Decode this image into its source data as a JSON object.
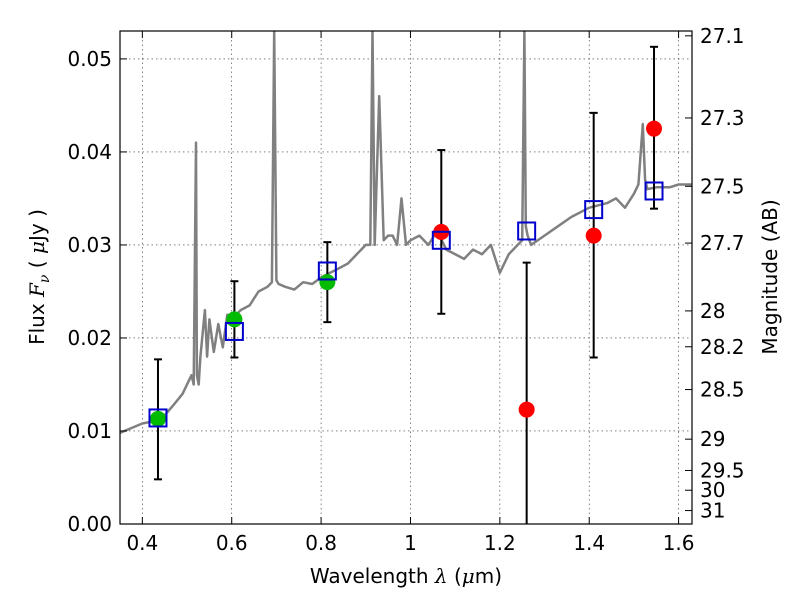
{
  "chart_data": {
    "type": "scatter",
    "xlabel_text": "Wavelength",
    "xlabel_symbol": "λ",
    "xlabel_unit_open": "(",
    "xlabel_unit_mu": "μ",
    "xlabel_unit_rest": "m)",
    "ylabel_text": "Flux",
    "ylabel_symbol": "F",
    "ylabel_sub": "ν",
    "ylabel_unit_open": "(",
    "ylabel_unit_mu": "μ",
    "ylabel_unit_rest": "Jy )",
    "y2label": "Magnitude (AB)",
    "xlim": [
      0.35,
      1.63
    ],
    "ylim": [
      0.0,
      0.053
    ],
    "grid": true,
    "x_ticks": [
      0.4,
      0.6,
      0.8,
      1.0,
      1.2,
      1.4,
      1.6
    ],
    "x_tick_labels": [
      "0.4",
      "0.6",
      "0.8",
      "1",
      "1.2",
      "1.4",
      "1.6"
    ],
    "y_ticks": [
      0.0,
      0.01,
      0.02,
      0.03,
      0.04,
      0.05
    ],
    "y_tick_labels": [
      "0.00",
      "0.01",
      "0.02",
      "0.03",
      "0.04",
      "0.05"
    ],
    "mag_ticks": [
      27.1,
      27.3,
      27.5,
      27.7,
      28,
      28.2,
      28.5,
      29,
      29.5,
      30,
      31
    ],
    "mag_tick_labels": [
      "27.1",
      "27.3",
      "27.5",
      "27.7",
      "28",
      "28.2",
      "28.5",
      "29",
      "29.5",
      "30",
      "31"
    ],
    "series": [
      {
        "marker": "circle",
        "color": "#00bb00",
        "points": [
          {
            "x": 0.435,
            "y": 0.0113,
            "err_lo": 0.0048,
            "err_hi": 0.0177
          },
          {
            "x": 0.606,
            "y": 0.022,
            "err_lo": 0.0179,
            "err_hi": 0.0261
          },
          {
            "x": 0.814,
            "y": 0.026,
            "err_lo": 0.0217,
            "err_hi": 0.0303
          }
        ]
      },
      {
        "marker": "circle",
        "color": "#ff0000",
        "points": [
          {
            "x": 1.069,
            "y": 0.0314,
            "err_lo": 0.0226,
            "err_hi": 0.0402
          },
          {
            "x": 1.26,
            "y": 0.0123,
            "err_lo": 0.0,
            "err_hi": 0.0281
          },
          {
            "x": 1.41,
            "y": 0.031,
            "err_lo": 0.0179,
            "err_hi": 0.0442
          },
          {
            "x": 1.545,
            "y": 0.0425,
            "err_lo": 0.0339,
            "err_hi": 0.0513
          }
        ]
      },
      {
        "marker": "square",
        "color": "#0000cc",
        "points": [
          {
            "x": 0.435,
            "y": 0.0114
          },
          {
            "x": 0.606,
            "y": 0.0207
          },
          {
            "x": 0.814,
            "y": 0.0272
          },
          {
            "x": 1.069,
            "y": 0.0305
          },
          {
            "x": 1.26,
            "y": 0.0315
          },
          {
            "x": 1.41,
            "y": 0.0338
          },
          {
            "x": 1.545,
            "y": 0.0358
          }
        ]
      }
    ],
    "spectrum": {
      "color": "#808080",
      "x": [
        0.35,
        0.37,
        0.4,
        0.42,
        0.45,
        0.47,
        0.49,
        0.5,
        0.51,
        0.515,
        0.52,
        0.522,
        0.526,
        0.53,
        0.54,
        0.545,
        0.55,
        0.56,
        0.57,
        0.58,
        0.59,
        0.6,
        0.61,
        0.62,
        0.64,
        0.66,
        0.68,
        0.69,
        0.695,
        0.7,
        0.705,
        0.72,
        0.74,
        0.76,
        0.78,
        0.8,
        0.82,
        0.84,
        0.86,
        0.88,
        0.9,
        0.91,
        0.915,
        0.92,
        0.93,
        0.94,
        0.95,
        0.96,
        0.97,
        0.98,
        0.99,
        1.0,
        1.02,
        1.04,
        1.06,
        1.08,
        1.1,
        1.12,
        1.14,
        1.16,
        1.18,
        1.2,
        1.22,
        1.24,
        1.25,
        1.255,
        1.258,
        1.262,
        1.27,
        1.3,
        1.33,
        1.36,
        1.4,
        1.44,
        1.46,
        1.48,
        1.5,
        1.51,
        1.52,
        1.525,
        1.53,
        1.55,
        1.58,
        1.6,
        1.63
      ],
      "y": [
        0.0098,
        0.0102,
        0.0108,
        0.011,
        0.0117,
        0.0128,
        0.014,
        0.015,
        0.016,
        0.015,
        0.041,
        0.016,
        0.015,
        0.018,
        0.023,
        0.018,
        0.022,
        0.0185,
        0.0215,
        0.019,
        0.0225,
        0.0215,
        0.0225,
        0.023,
        0.0235,
        0.025,
        0.0255,
        0.026,
        0.053,
        0.0262,
        0.0258,
        0.0255,
        0.0252,
        0.026,
        0.0258,
        0.0265,
        0.027,
        0.0275,
        0.028,
        0.029,
        0.03,
        0.03,
        0.053,
        0.03,
        0.046,
        0.0305,
        0.031,
        0.031,
        0.03,
        0.035,
        0.03,
        0.0305,
        0.031,
        0.03,
        0.0315,
        0.0295,
        0.029,
        0.0285,
        0.0295,
        0.029,
        0.03,
        0.027,
        0.029,
        0.03,
        0.0305,
        0.053,
        0.032,
        0.031,
        0.03,
        0.031,
        0.032,
        0.033,
        0.034,
        0.0345,
        0.035,
        0.034,
        0.0355,
        0.0365,
        0.043,
        0.037,
        0.036,
        0.0362,
        0.0362,
        0.0365,
        0.0365
      ]
    }
  }
}
